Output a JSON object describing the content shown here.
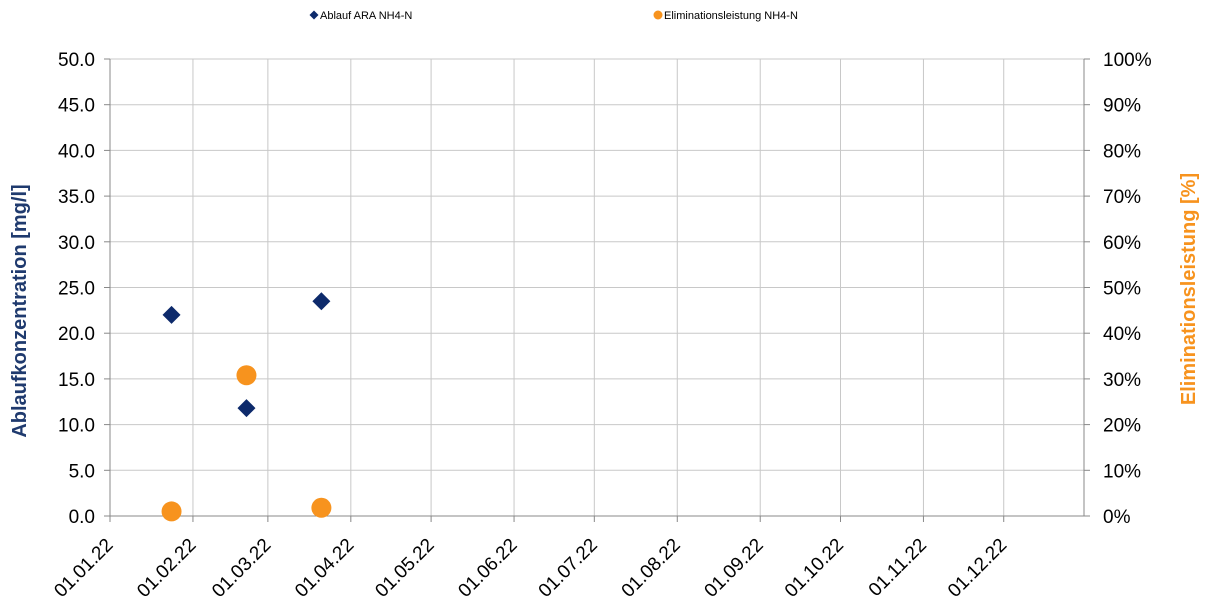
{
  "chart_data": {
    "type": "scatter",
    "legend": {
      "placement": "top"
    },
    "grid": true,
    "x_axis": {
      "type": "date",
      "range": [
        "2022-01-01",
        "2022-12-31"
      ],
      "tick_dates": [
        "2022-01-01",
        "2022-02-01",
        "2022-03-01",
        "2022-04-01",
        "2022-05-01",
        "2022-06-01",
        "2022-07-01",
        "2022-08-01",
        "2022-09-01",
        "2022-10-01",
        "2022-11-01",
        "2022-12-01"
      ],
      "tick_labels": [
        "01.01.22",
        "01.02.22",
        "01.03.22",
        "01.04.22",
        "01.05.22",
        "01.06.22",
        "01.07.22",
        "01.08.22",
        "01.09.22",
        "01.10.22",
        "01.11.22",
        "01.12.22"
      ]
    },
    "y_left": {
      "label": "Ablaufkonzentration [mg/l]",
      "color": "#1f3a6e",
      "range": [
        0,
        50
      ],
      "tick_labels": [
        "0.0",
        "5.0",
        "10.0",
        "15.0",
        "20.0",
        "25.0",
        "30.0",
        "35.0",
        "40.0",
        "45.0",
        "50.0"
      ]
    },
    "y_right": {
      "label": "Eliminationsleistung [%]",
      "color": "#f7931e",
      "range": [
        0,
        100
      ],
      "tick_labels": [
        "0%",
        "10%",
        "20%",
        "30%",
        "40%",
        "50%",
        "60%",
        "70%",
        "80%",
        "90%",
        "100%"
      ]
    },
    "series": [
      {
        "name": "Ablauf ARA NH4-N",
        "axis": "left",
        "marker": "diamond",
        "color": "#0d2a6b",
        "points": [
          {
            "x": "2022-01-24",
            "y": 22.0
          },
          {
            "x": "2022-02-21",
            "y": 11.8
          },
          {
            "x": "2022-03-21",
            "y": 23.5
          }
        ]
      },
      {
        "name": "Eliminationsleistung NH4-N",
        "axis": "right",
        "marker": "circle",
        "color": "#f7931e",
        "points": [
          {
            "x": "2022-01-24",
            "y": 1
          },
          {
            "x": "2022-02-21",
            "y": 30.8
          },
          {
            "x": "2022-03-21",
            "y": 1.8
          }
        ]
      }
    ]
  }
}
